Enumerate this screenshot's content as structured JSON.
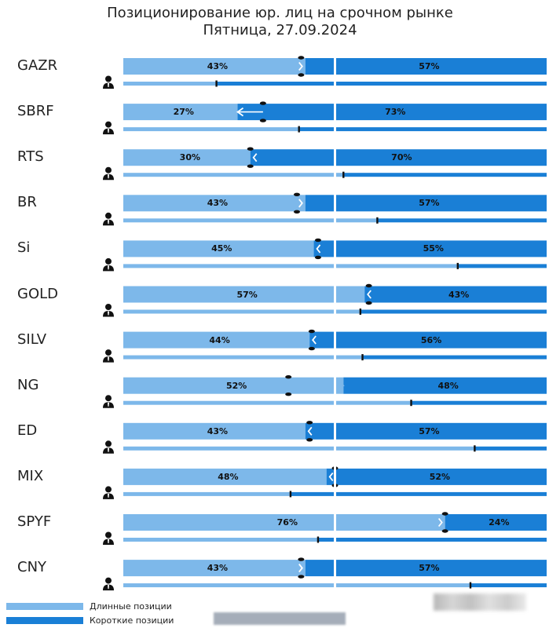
{
  "colors": {
    "long": "#7db8ea",
    "short": "#1a7fd6",
    "marker": "#111111",
    "arrow_light": "#ffffff",
    "person": "#111111"
  },
  "chart_data": {
    "type": "bar",
    "title": "Позиционирование юр. лиц на срочном рынке",
    "subtitle": "Пятница, 27.09.2024",
    "xlim": [
      0,
      100
    ],
    "rows": [
      {
        "ticker": "GAZR",
        "long": 43,
        "short": 57,
        "prev_long": 42,
        "sub_long": 22,
        "arrow": "right"
      },
      {
        "ticker": "SBRF",
        "long": 27,
        "short": 73,
        "prev_long": 33,
        "sub_long": 41.5,
        "arrow": "left"
      },
      {
        "ticker": "RTS",
        "long": 30,
        "short": 70,
        "prev_long": 30,
        "sub_long": 52,
        "arrow": "left"
      },
      {
        "ticker": "BR",
        "long": 43,
        "short": 57,
        "prev_long": 41,
        "sub_long": 60,
        "arrow": "right"
      },
      {
        "ticker": "Si",
        "long": 45,
        "short": 55,
        "prev_long": 46,
        "sub_long": 79,
        "arrow": "left"
      },
      {
        "ticker": "GOLD",
        "long": 57,
        "short": 43,
        "prev_long": 58,
        "sub_long": 56,
        "arrow": "left"
      },
      {
        "ticker": "SILV",
        "long": 44,
        "short": 56,
        "prev_long": 44.5,
        "sub_long": 56.5,
        "arrow": "left"
      },
      {
        "ticker": "NG",
        "long": 52,
        "short": 48,
        "prev_long": 39,
        "sub_long": 68,
        "arrow": "right"
      },
      {
        "ticker": "ED",
        "long": 43,
        "short": 57,
        "prev_long": 44,
        "sub_long": 83,
        "arrow": "left"
      },
      {
        "ticker": "MIX",
        "long": 48,
        "short": 52,
        "prev_long": 50,
        "sub_long": 39.5,
        "arrow": "left"
      },
      {
        "ticker": "SPYF",
        "long": 76,
        "short": 24,
        "prev_long": 76,
        "sub_long": 46,
        "arrow": "right"
      },
      {
        "ticker": "CNY",
        "long": 43,
        "short": 57,
        "prev_long": 42,
        "sub_long": 82,
        "arrow": "right"
      }
    ],
    "legend": [
      {
        "name": "Длинные позиции",
        "color": "#7db8ea"
      },
      {
        "name": "Короткие позиции",
        "color": "#1a7fd6"
      }
    ],
    "legend_placement": "bottom-left",
    "grid": false
  }
}
